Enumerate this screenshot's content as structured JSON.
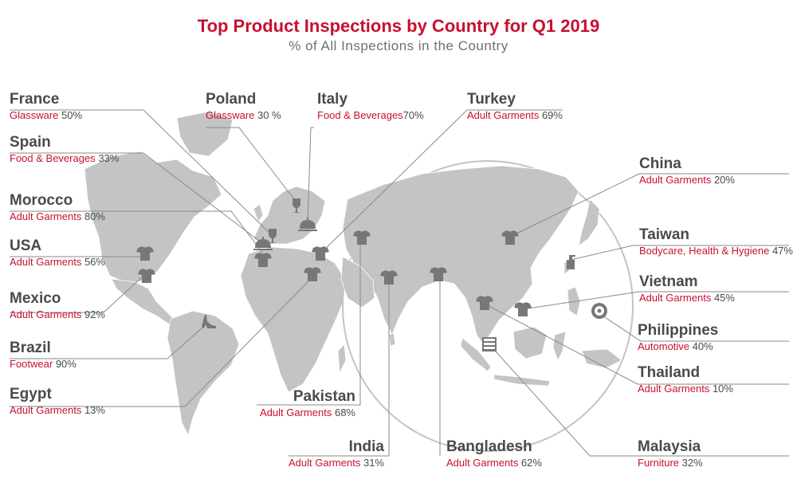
{
  "title": "Top Product Inspections by Country for Q1 2019",
  "subtitle": "% of All Inspections in the Country",
  "colors": {
    "title": "#c8102e",
    "category": "#c8102e",
    "land": "#c4c4c4",
    "icon": "#777777",
    "leader": "#8a8a8a",
    "country_name": "#4a4a4a"
  },
  "countries": [
    {
      "id": "france",
      "name": "France",
      "category": "Glassware",
      "percent": "50%",
      "icon": "wine-glass-icon"
    },
    {
      "id": "spain",
      "name": "Spain",
      "category": "Food & Beverages",
      "percent": "33%",
      "icon": "food-cloche-icon"
    },
    {
      "id": "morocco",
      "name": "Morocco",
      "category": "Adult Garments",
      "percent": "80%",
      "icon": "tshirt-icon"
    },
    {
      "id": "usa",
      "name": "USA",
      "category": "Adult Garments",
      "percent": "56%",
      "icon": "tshirt-icon"
    },
    {
      "id": "mexico",
      "name": "Mexico",
      "category": "Adult Garments",
      "percent": "92%",
      "icon": "tshirt-icon"
    },
    {
      "id": "brazil",
      "name": "Brazil",
      "category": "Footwear",
      "percent": "90%",
      "icon": "high-heel-shoe-icon"
    },
    {
      "id": "egypt",
      "name": "Egypt",
      "category": "Adult Garments",
      "percent": "13%",
      "icon": "tshirt-icon"
    },
    {
      "id": "poland",
      "name": "Poland",
      "category": "Glassware",
      "percent": "30 %",
      "icon": "wine-glass-icon"
    },
    {
      "id": "italy",
      "name": "Italy",
      "category": "Food & Beverages",
      "percent": "70%",
      "icon": "food-cloche-icon"
    },
    {
      "id": "turkey",
      "name": "Turkey",
      "category": "Adult Garments",
      "percent": "69%",
      "icon": "tshirt-icon"
    },
    {
      "id": "china",
      "name": "China",
      "category": "Adult Garments",
      "percent": "20%",
      "icon": "tshirt-icon"
    },
    {
      "id": "taiwan",
      "name": "Taiwan",
      "category": "Bodycare, Health & Hygiene",
      "percent": "47%",
      "icon": "soap-bottle-icon"
    },
    {
      "id": "vietnam",
      "name": "Vietnam",
      "category": "Adult Garments",
      "percent": "45%",
      "icon": "tshirt-icon"
    },
    {
      "id": "philippines",
      "name": "Philippines",
      "category": "Automotive",
      "percent": "40%",
      "icon": "car-wheel-icon"
    },
    {
      "id": "thailand",
      "name": "Thailand",
      "category": "Adult Garments",
      "percent": "10%",
      "icon": "tshirt-icon"
    },
    {
      "id": "pakistan",
      "name": "Pakistan",
      "category": "Adult Garments",
      "percent": "68%",
      "icon": "tshirt-icon"
    },
    {
      "id": "india",
      "name": "India",
      "category": "Adult Garments",
      "percent": "31%",
      "icon": "tshirt-icon"
    },
    {
      "id": "bangladesh",
      "name": "Bangladesh",
      "category": "Adult Garments",
      "percent": "62%",
      "icon": "tshirt-icon"
    },
    {
      "id": "malaysia",
      "name": "Malaysia",
      "category": "Furniture",
      "percent": "32%",
      "icon": "cabinet-icon"
    }
  ]
}
